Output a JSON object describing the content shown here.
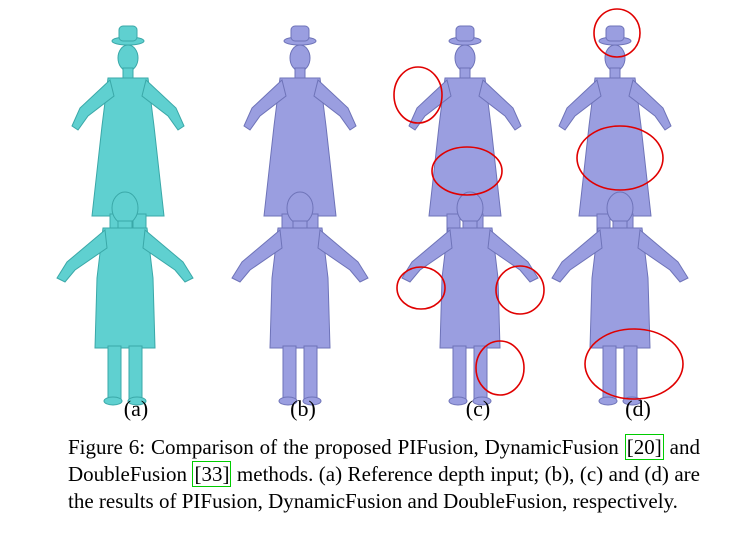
{
  "figure": {
    "panel_labels": [
      "(a)",
      "(b)",
      "(c)",
      "(d)"
    ],
    "colors": {
      "reference": "#5fd0d0",
      "result": "#9a9ee0",
      "highlight": "#e00000",
      "cite_box": "#00cc00"
    }
  },
  "caption": {
    "part1": "Figure 6: Comparison of the proposed PIFusion, DynamicFusion",
    "cite1": "[20]",
    "part2": " and DoubleFusion ",
    "cite2": "[33]",
    "part3": " methods. (a) Reference depth input; (b), (c) and (d) are the results of PIFusion, DynamicFusion and DoubleFusion, respectively."
  }
}
